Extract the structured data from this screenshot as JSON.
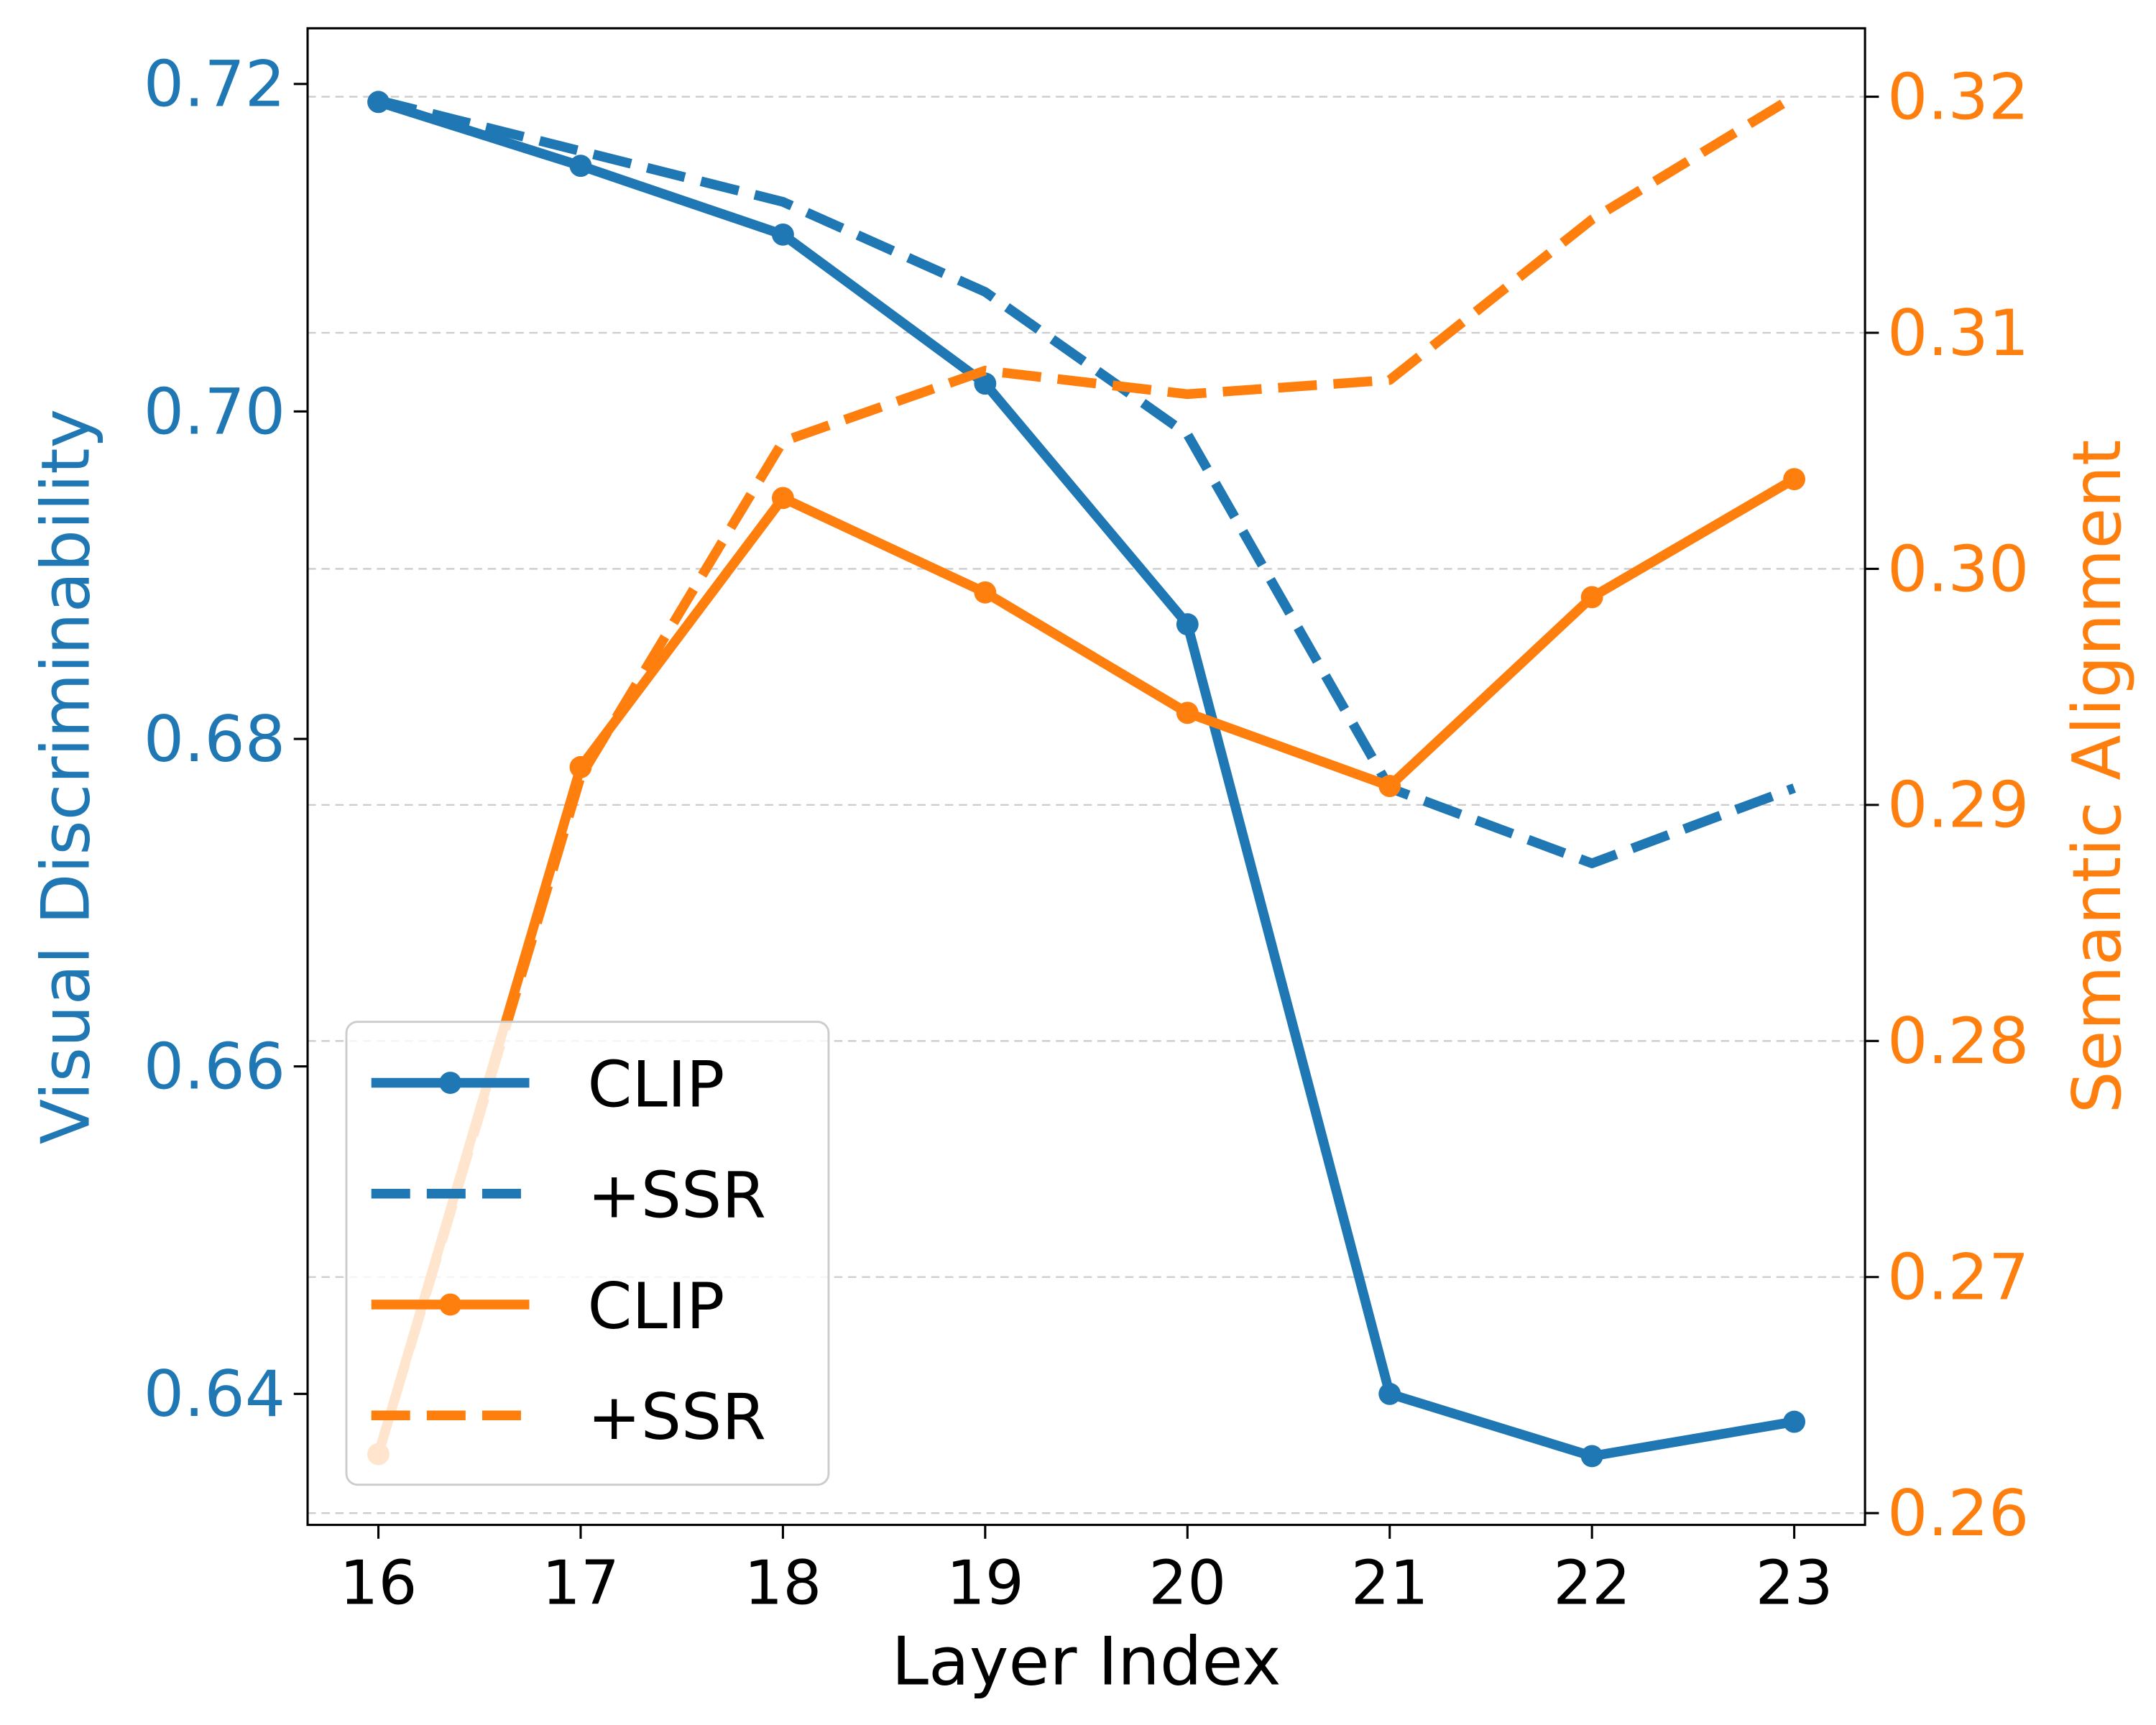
{
  "chart_data": {
    "type": "line",
    "title": "",
    "xlabel": "Layer Index",
    "ylabel_left": "Visual Discriminability",
    "ylabel_right": "Semantic Alignment",
    "x": [
      16,
      17,
      18,
      19,
      20,
      21,
      22,
      23
    ],
    "xlim": [
      15.65,
      23.35
    ],
    "ylim_left": [
      0.632,
      0.7234
    ],
    "ylim_right": [
      0.2595,
      0.3229
    ],
    "xticks": [
      "16",
      "17",
      "18",
      "19",
      "20",
      "21",
      "22",
      "23"
    ],
    "yticks_left": [
      "0.64",
      "0.66",
      "0.68",
      "0.70",
      "0.72"
    ],
    "yticks_left_values": [
      0.64,
      0.66,
      0.68,
      0.7,
      0.72
    ],
    "yticks_right": [
      "0.26",
      "0.27",
      "0.28",
      "0.29",
      "0.30",
      "0.31",
      "0.32"
    ],
    "yticks_right_values": [
      0.26,
      0.27,
      0.28,
      0.29,
      0.3,
      0.31,
      0.32
    ],
    "grid": "horizontal dashed at right-axis ticks",
    "legend_placement": "lower-left",
    "colors": {
      "left": "#1f77b4",
      "right": "#ff7f0e"
    },
    "series": [
      {
        "name": "CLIP",
        "axis": "left",
        "style": "solid-markers",
        "color": "#1f77b4",
        "values": [
          0.7189,
          0.715,
          0.7108,
          0.7017,
          0.687,
          0.64,
          0.6362,
          0.6383
        ]
      },
      {
        "name": "+SSR",
        "axis": "left",
        "style": "dashed",
        "color": "#1f77b4",
        "values": [
          0.719,
          0.7159,
          0.7128,
          0.7073,
          0.6986,
          0.677,
          0.6724,
          0.677
        ]
      },
      {
        "name": "CLIP",
        "axis": "right",
        "style": "solid-markers",
        "color": "#ff7f0e",
        "values": [
          0.2625,
          0.2916,
          0.303,
          0.299,
          0.2939,
          0.2908,
          0.2988,
          0.3038
        ]
      },
      {
        "name": "+SSR",
        "axis": "right",
        "style": "dashed",
        "color": "#ff7f0e",
        "values": [
          0.2625,
          0.2912,
          0.3054,
          0.3084,
          0.3074,
          0.308,
          0.3148,
          0.32
        ]
      }
    ]
  }
}
